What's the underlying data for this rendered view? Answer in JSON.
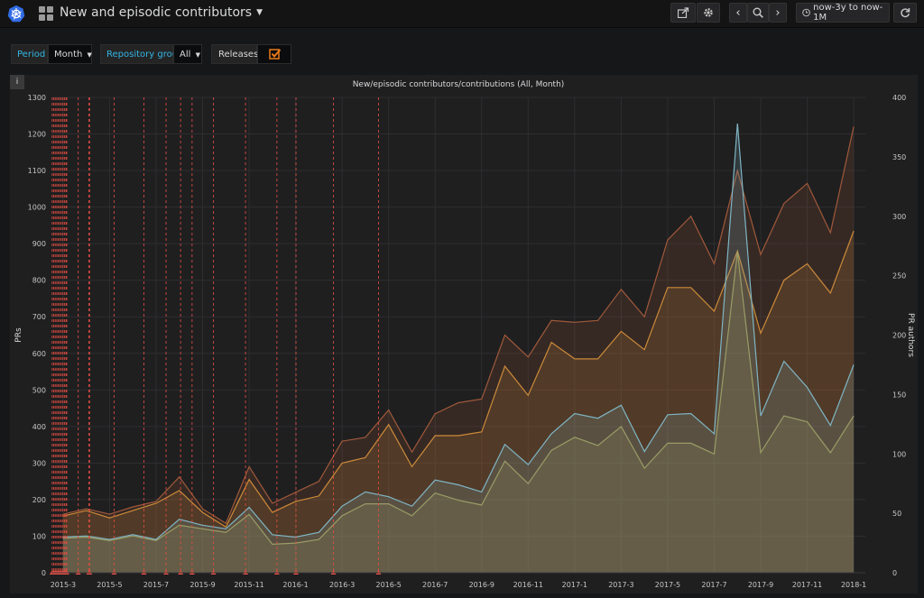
{
  "navbar": {
    "title": "New and episodic contributors",
    "time_range": "now-3y to now-1M",
    "icons": {
      "logo": "kubernetes-logo-icon",
      "dashboards": "dashboard-grid-icon",
      "share": "share-icon",
      "settings": "gear-icon",
      "prev": "chevron-left-icon",
      "zoom": "zoom-out-icon",
      "next": "chevron-right-icon",
      "clock": "clock-icon",
      "refresh": "refresh-icon"
    }
  },
  "variables": {
    "period_label": "Period",
    "period_value": "Month",
    "repo_group_label": "Repository group",
    "repo_group_value": "All",
    "releases_label": "Releases",
    "releases_checked": true
  },
  "panel": {
    "info": "i"
  },
  "chart_data": {
    "type": "area",
    "title": "New/episodic contributors/contributions (All, Month)",
    "ylabel": "PRs",
    "y2label": "PR authors",
    "ylim": [
      0,
      1300
    ],
    "y2lim": [
      0,
      400
    ],
    "yticks": [
      0,
      100,
      200,
      300,
      400,
      500,
      600,
      700,
      800,
      900,
      1000,
      1100,
      1200,
      1300
    ],
    "y2ticks": [
      0,
      50,
      100,
      150,
      200,
      250,
      300,
      350,
      400
    ],
    "x_tick_labels": [
      "2015-3",
      "2015-5",
      "2015-7",
      "2015-9",
      "2015-11",
      "2016-1",
      "2016-3",
      "2016-5",
      "2016-7",
      "2016-9",
      "2016-11",
      "2017-1",
      "2017-3",
      "2017-5",
      "2017-7",
      "2017-9",
      "2017-11",
      "2018-1"
    ],
    "grid": true,
    "colors": {
      "brown": "#a0593a",
      "orange": "#cc8a3a",
      "blue": "#7fb5c4",
      "olive": "#9a9c66",
      "release": "#e24d42"
    },
    "series": [
      {
        "color_key": "brown",
        "axis": "left",
        "values": [
          160,
          175,
          160,
          180,
          195,
          262,
          175,
          135,
          290,
          190,
          220,
          250,
          360,
          370,
          445,
          330,
          435,
          465,
          475,
          650,
          590,
          690,
          685,
          690,
          775,
          700,
          910,
          975,
          845,
          1100,
          870,
          1010,
          1065,
          930,
          1220
        ]
      },
      {
        "color_key": "orange",
        "axis": "left",
        "values": [
          155,
          170,
          150,
          170,
          190,
          225,
          165,
          125,
          255,
          165,
          195,
          210,
          300,
          315,
          405,
          290,
          375,
          375,
          385,
          565,
          485,
          630,
          585,
          585,
          660,
          610,
          780,
          780,
          715,
          880,
          655,
          800,
          845,
          765,
          935
        ]
      },
      {
        "color_key": "blue",
        "axis": "right",
        "values": [
          30,
          31,
          28,
          32,
          28,
          45,
          40,
          37,
          55,
          32,
          30,
          34,
          56,
          68,
          64,
          56,
          78,
          74,
          68,
          108,
          91,
          117,
          134,
          130,
          141,
          102,
          133,
          134,
          117,
          378,
          132,
          178,
          156,
          124,
          175
        ]
      },
      {
        "color_key": "olive",
        "axis": "right",
        "values": [
          29,
          30,
          27,
          31,
          27,
          40,
          37,
          34,
          49,
          24,
          25,
          28,
          48,
          58,
          58,
          48,
          67,
          61,
          57,
          94,
          75,
          103,
          114,
          107,
          123,
          88,
          109,
          109,
          100,
          270,
          101,
          132,
          127,
          101,
          132
        ]
      }
    ],
    "release_marks": [
      1,
      3,
      5,
      7,
      9,
      11,
      13,
      15,
      17,
      19,
      20,
      35,
      49,
      50,
      82,
      121,
      150,
      169,
      184,
      212,
      254,
      295,
      320,
      369,
      428
    ]
  }
}
